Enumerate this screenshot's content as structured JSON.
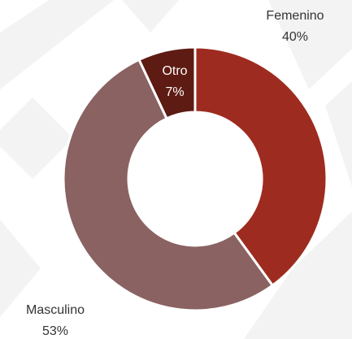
{
  "chart_data": {
    "type": "donut",
    "categories": [
      "Femenino",
      "Masculino",
      "Otro"
    ],
    "values": [
      40,
      53,
      7
    ],
    "value_labels": [
      "40%",
      "53%",
      "7%"
    ],
    "colors": [
      "#9e2b1f",
      "#8a6262",
      "#5e1b13"
    ]
  }
}
